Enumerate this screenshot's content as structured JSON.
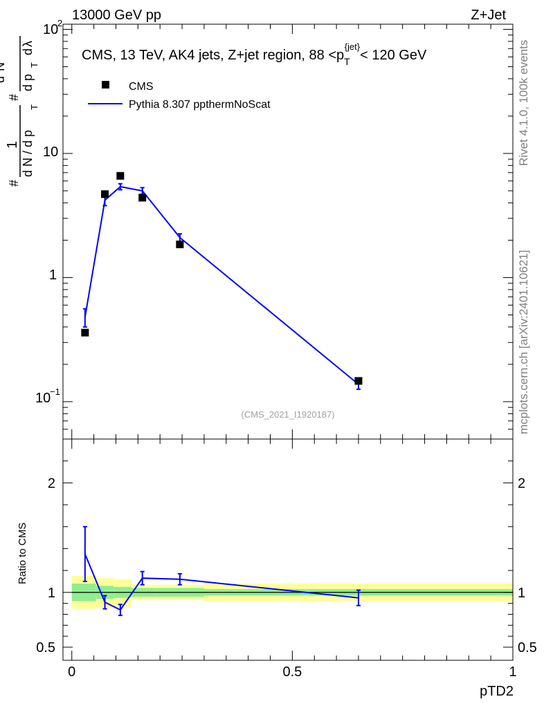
{
  "header": {
    "energy_label": "13000 GeV pp",
    "process_label": "Z+Jet"
  },
  "side_labels": {
    "rivet": "Rivet 4.1.0,  100k events",
    "mcplots": "mcplots.cern.ch [arXiv:2401.10621]"
  },
  "colors": {
    "data": "#000000",
    "mc": "#0000ff",
    "band_green": "#90ee90",
    "band_yellow": "#ffff99"
  },
  "chart_data": [
    {
      "type": "scatter",
      "panel": "main",
      "title": "CMS, 13 TeV, AK4 jets, Z+jet region, 88 <p_T^{jet}< 120 GeV",
      "title_parts": {
        "prefix": "CMS, 13 TeV, AK4 jets, Z+jet region, 88 <p",
        "sub": "T",
        "sup": "{jet}",
        "suffix": "< 120 GeV"
      },
      "ylabel": "1/(d N / d p_T) d²N/(d p_T d λ)",
      "ylabel_parts": {
        "hash": "#",
        "one": "1",
        "den": "d N / d p",
        "t": "T",
        "num": "d",
        "sq": "2",
        "n": "N",
        "den2": "d p",
        "dl": "d",
        "lambda": "λ"
      },
      "yscale": "log",
      "ylim": [
        0.05,
        110
      ],
      "xlim": [
        -0.02,
        1.0
      ],
      "ytick_labels": [
        "10",
        "1",
        "10"
      ],
      "ytick_sup": [
        "2",
        "−1"
      ],
      "watermark": "(CMS_2021_I1920187)",
      "legend": [
        "CMS",
        "Pythia 8.307 ppthermNoScat"
      ],
      "legend_position": "top-left",
      "series": [
        {
          "name": "CMS",
          "style": "markers",
          "x": [
            0.03,
            0.075,
            0.11,
            0.16,
            0.245,
            0.65
          ],
          "y": [
            0.36,
            4.7,
            6.6,
            4.4,
            1.85,
            0.147
          ]
        },
        {
          "name": "Pythia 8.307 ppthermNoScat",
          "style": "line",
          "x": [
            0.03,
            0.075,
            0.11,
            0.16,
            0.245,
            0.65
          ],
          "y": [
            0.48,
            4.2,
            5.4,
            5.0,
            2.1,
            0.138
          ],
          "yerr_low": [
            0.08,
            0.4,
            0.3,
            0.3,
            0.15,
            0.012
          ],
          "yerr_high": [
            0.08,
            0.4,
            0.3,
            0.3,
            0.15,
            0.012
          ]
        }
      ]
    },
    {
      "type": "line",
      "panel": "ratio",
      "ylabel": "Ratio to CMS",
      "ylim": [
        0.38,
        2.4
      ],
      "xlim": [
        -0.02,
        1.0
      ],
      "xlabel": "pTD2",
      "xtick_labels": [
        "0",
        "0.5",
        "1"
      ],
      "ytick_labels": [
        "0.5",
        "1",
        "2"
      ],
      "ytick_values": [
        0.5,
        1,
        2
      ],
      "xtick_values": [
        0,
        0.5,
        1
      ],
      "bands": {
        "bin_edges": [
          0.0,
          0.055,
          0.095,
          0.135,
          0.19,
          0.3,
          1.0
        ],
        "green_low": [
          0.92,
          0.94,
          0.95,
          0.96,
          0.96,
          0.97
        ],
        "green_high": [
          1.08,
          1.06,
          1.05,
          1.04,
          1.04,
          1.03
        ],
        "yellow_low": [
          0.85,
          0.86,
          0.87,
          0.93,
          0.93,
          0.92
        ],
        "yellow_high": [
          1.15,
          1.13,
          1.12,
          1.07,
          1.07,
          1.08
        ]
      },
      "series": [
        {
          "name": "Pythia 8.307 ppthermNoScat",
          "x": [
            0.03,
            0.075,
            0.11,
            0.16,
            0.245,
            0.65
          ],
          "y": [
            1.35,
            0.91,
            0.84,
            1.13,
            1.12,
            0.95
          ],
          "yerr_low": [
            0.25,
            0.06,
            0.05,
            0.06,
            0.05,
            0.07
          ],
          "yerr_high": [
            0.25,
            0.06,
            0.05,
            0.06,
            0.05,
            0.07
          ]
        }
      ]
    }
  ]
}
